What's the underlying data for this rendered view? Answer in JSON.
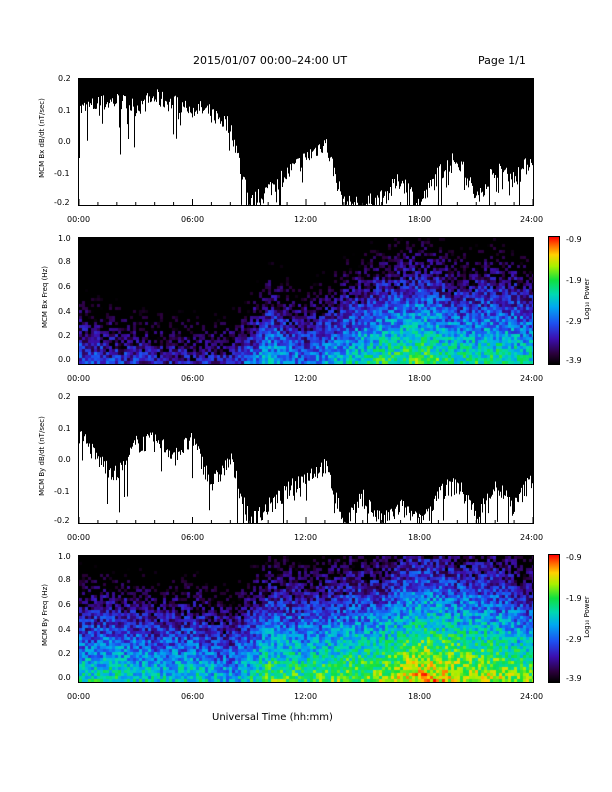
{
  "header": {
    "title": "2015/01/07  00:00–24:00 UT",
    "page": "Page 1/1"
  },
  "footer": {
    "xlabel": "Universal Time (hh:mm)"
  },
  "colorbar": {
    "label": "Log₁₀ Power",
    "ticks": [
      "-0.9",
      "-1.9",
      "-2.9",
      "-3.9"
    ]
  },
  "x_ticks": [
    "00:00",
    "06:00",
    "12:00",
    "18:00",
    "24:00"
  ],
  "chart_data": [
    {
      "type": "line",
      "ylabel": "MCM Bx dB/dt (nT/sec)",
      "xlim": [
        0,
        24
      ],
      "ylim": [
        -0.2,
        0.2
      ],
      "y_ticks": [
        "0.2",
        "0.1",
        "0.0",
        "-0.1",
        "-0.2"
      ],
      "series": [
        {
          "x": [
            0,
            1,
            2,
            3,
            4,
            5,
            6,
            7,
            8,
            9,
            10,
            11,
            12,
            13,
            14,
            15,
            16,
            17,
            18,
            19,
            20,
            21,
            22,
            23,
            24
          ],
          "y_max": [
            0.2,
            0.2,
            0.2,
            0.2,
            0.2,
            0.2,
            0.2,
            0.2,
            0.2,
            0.2,
            0.2,
            0.2,
            0.2,
            0.2,
            0.2,
            0.2,
            0.2,
            0.2,
            0.2,
            0.2,
            0.2,
            0.2,
            0.2,
            0.2,
            0.2
          ],
          "y_min": [
            0.1,
            0.12,
            0.13,
            0.11,
            0.14,
            0.12,
            0.11,
            0.09,
            0.05,
            -0.2,
            -0.15,
            -0.1,
            -0.05,
            0.0,
            -0.2,
            -0.2,
            -0.18,
            -0.12,
            -0.2,
            -0.1,
            -0.05,
            -0.18,
            -0.08,
            -0.12,
            -0.05
          ]
        }
      ]
    },
    {
      "type": "heatmap",
      "ylabel": "MCM Bx Freq (Hz)",
      "xlim": [
        0,
        24
      ],
      "ylim": [
        0,
        1.0
      ],
      "y_ticks": [
        "1.0",
        "0.8",
        "0.6",
        "0.4",
        "0.2",
        "0.0"
      ],
      "color_range": [
        -3.9,
        -0.9
      ],
      "x": [
        0,
        2,
        4,
        6,
        8,
        10,
        12,
        14,
        16,
        18,
        20,
        22,
        24
      ],
      "low_freq_log_power": [
        -2.9,
        -3.1,
        -3.2,
        -3.3,
        -3.2,
        -2.4,
        -2.8,
        -2.3,
        -2.0,
        -1.8,
        -2.1,
        -2.0,
        -2.2
      ]
    },
    {
      "type": "line",
      "ylabel": "MCM By dB/dt (nT/sec)",
      "xlim": [
        0,
        24
      ],
      "ylim": [
        -0.2,
        0.2
      ],
      "y_ticks": [
        "0.2",
        "0.1",
        "0.0",
        "-0.1",
        "-0.2"
      ],
      "series": [
        {
          "x": [
            0,
            1,
            2,
            3,
            4,
            5,
            6,
            7,
            8,
            9,
            10,
            11,
            12,
            13,
            14,
            15,
            16,
            17,
            18,
            19,
            20,
            21,
            22,
            23,
            24
          ],
          "y_max": [
            0.2,
            0.2,
            0.2,
            0.2,
            0.2,
            0.2,
            0.2,
            0.2,
            0.2,
            0.2,
            0.2,
            0.2,
            0.2,
            0.2,
            0.2,
            0.2,
            0.2,
            0.2,
            0.2,
            0.2,
            0.2,
            0.2,
            0.2,
            0.2,
            0.2
          ],
          "y_min": [
            0.08,
            0.0,
            -0.05,
            0.05,
            0.06,
            0.02,
            0.06,
            -0.08,
            0.0,
            -0.2,
            -0.15,
            -0.1,
            -0.05,
            -0.02,
            -0.2,
            -0.12,
            -0.2,
            -0.15,
            -0.2,
            -0.1,
            -0.08,
            -0.18,
            -0.08,
            -0.15,
            -0.05
          ]
        }
      ]
    },
    {
      "type": "heatmap",
      "ylabel": "MCM By Freq (Hz)",
      "xlim": [
        0,
        24
      ],
      "ylim": [
        0,
        1.0
      ],
      "y_ticks": [
        "1.0",
        "0.8",
        "0.6",
        "0.4",
        "0.2",
        "0.0"
      ],
      "color_range": [
        -3.9,
        -0.9
      ],
      "x": [
        0,
        2,
        4,
        6,
        8,
        10,
        12,
        14,
        16,
        18,
        20,
        22,
        24
      ],
      "low_freq_log_power": [
        -2.2,
        -2.1,
        -2.3,
        -2.2,
        -2.5,
        -1.8,
        -1.9,
        -1.7,
        -1.6,
        -1.2,
        -1.4,
        -1.5,
        -1.8
      ]
    }
  ]
}
